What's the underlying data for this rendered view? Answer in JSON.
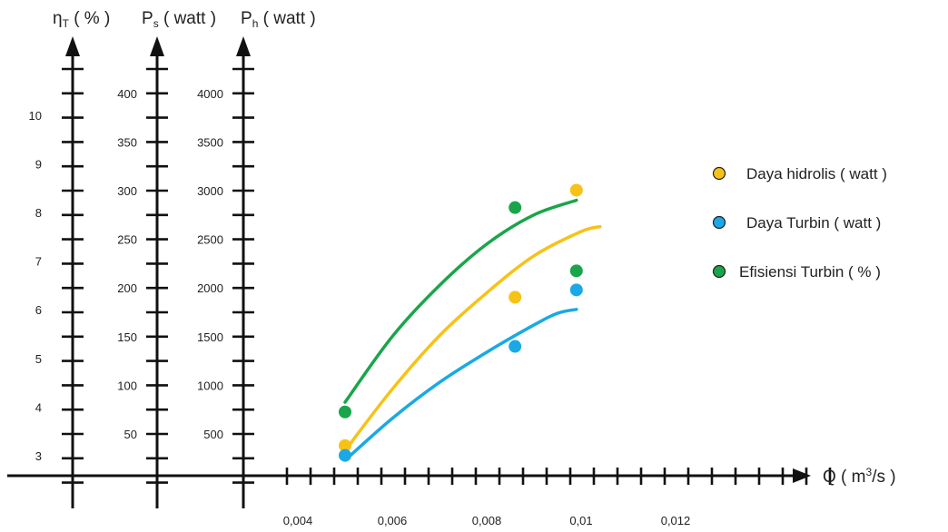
{
  "chart_data": {
    "type": "scatter",
    "x_axis": {
      "label_prefix": "Q ( m",
      "label_sup": "3",
      "label_suffix": "/s )",
      "tick_labels": [
        "0,004",
        "0,006",
        "0,008",
        "0,01",
        "0,012"
      ],
      "tick_values": [
        0.004,
        0.006,
        0.008,
        0.01,
        0.012
      ]
    },
    "y_axes": [
      {
        "key": "eta",
        "label_main": "η",
        "label_sub": "T",
        "label_rest": " ( % )",
        "tick_labels": [
          "3",
          "4",
          "5",
          "6",
          "7",
          "8",
          "9",
          "10"
        ],
        "tick_values": [
          3,
          4,
          5,
          6,
          7,
          8,
          9,
          10
        ]
      },
      {
        "key": "ps",
        "label_main": "P",
        "label_sub": "s",
        "label_rest": " ( watt )",
        "tick_labels": [
          "50",
          "100",
          "150",
          "200",
          "250",
          "300",
          "350",
          "400"
        ],
        "tick_values": [
          50,
          100,
          150,
          200,
          250,
          300,
          350,
          400
        ]
      },
      {
        "key": "ph",
        "label_main": "P",
        "label_sub": "h",
        "label_rest": " ( watt )",
        "tick_labels": [
          "500",
          "1000",
          "1500",
          "2000",
          "2500",
          "3000",
          "3500",
          "4000"
        ],
        "tick_values": [
          500,
          1000,
          1500,
          2000,
          2500,
          3000,
          3500,
          4000
        ]
      }
    ],
    "series": [
      {
        "name": "Daya hidrolis ( watt )",
        "axis": "ph",
        "color": "#f7c217",
        "points": [
          [
            0.005,
            380
          ],
          [
            0.0086,
            1905
          ],
          [
            0.0099,
            3005
          ]
        ],
        "trend": [
          [
            0.005,
            330
          ],
          [
            0.006,
            960
          ],
          [
            0.007,
            1510
          ],
          [
            0.008,
            1950
          ],
          [
            0.009,
            2330
          ],
          [
            0.01,
            2580
          ],
          [
            0.0104,
            2630
          ]
        ]
      },
      {
        "name": "Daya Turbin ( watt )",
        "axis": "ps",
        "color": "#1aa9e6",
        "points": [
          [
            0.005,
            28
          ],
          [
            0.0086,
            140
          ],
          [
            0.0099,
            198
          ]
        ],
        "trend": [
          [
            0.005,
            23
          ],
          [
            0.006,
            66
          ],
          [
            0.007,
            103
          ],
          [
            0.008,
            134
          ],
          [
            0.009,
            162
          ],
          [
            0.0095,
            174
          ],
          [
            0.0099,
            178
          ]
        ]
      },
      {
        "name": "Efisiensi Turbin ( % )",
        "axis": "eta",
        "color": "#1aa54a",
        "points": [
          [
            0.005,
            3.9
          ],
          [
            0.0086,
            8.1
          ],
          [
            0.0099,
            6.8
          ]
        ],
        "trend": [
          [
            0.005,
            4.1
          ],
          [
            0.006,
            5.45
          ],
          [
            0.007,
            6.5
          ],
          [
            0.008,
            7.35
          ],
          [
            0.009,
            7.95
          ],
          [
            0.0099,
            8.25
          ]
        ]
      }
    ],
    "legend_position": "right",
    "grid": false
  }
}
